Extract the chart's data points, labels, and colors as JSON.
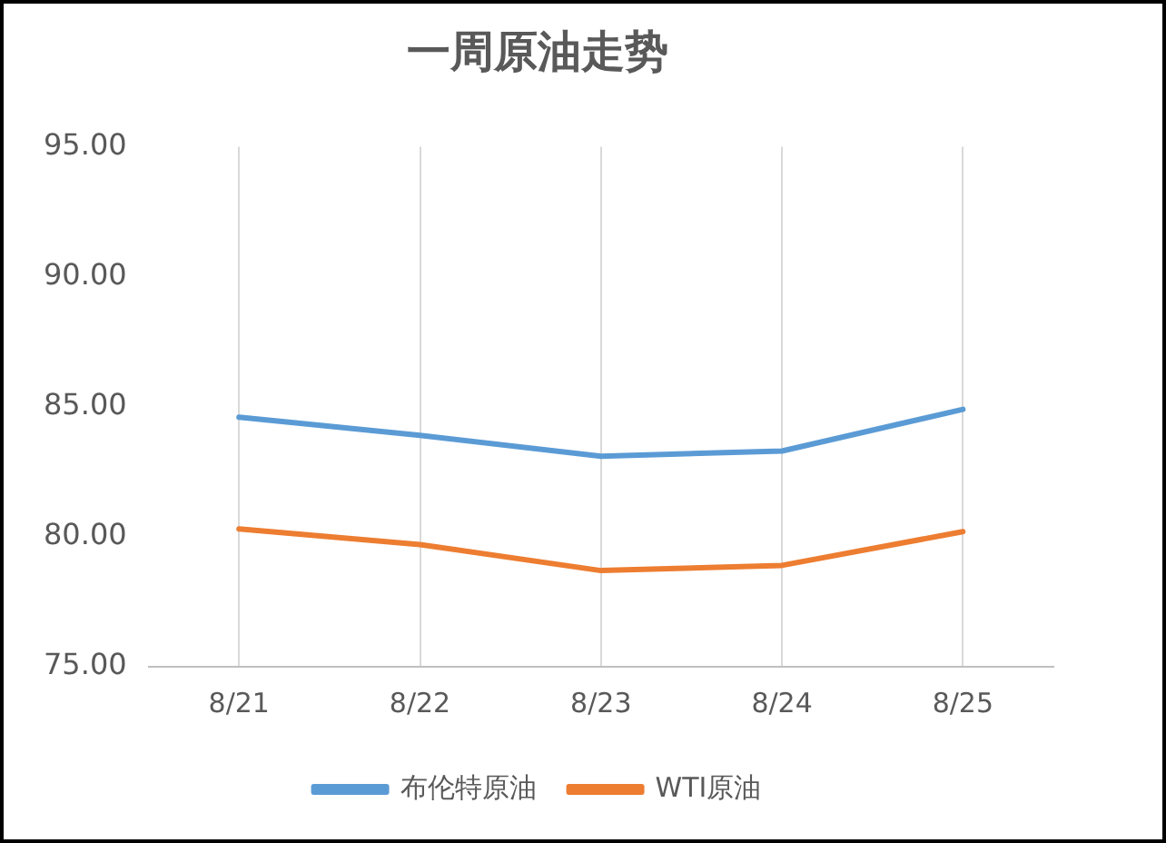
{
  "chart_data": {
    "type": "line",
    "title": "一周原油走势",
    "categories": [
      "8/21",
      "8/22",
      "8/23",
      "8/24",
      "8/25"
    ],
    "series": [
      {
        "name": "布伦特原油",
        "color": "#5b9bd5",
        "values": [
          84.6,
          83.9,
          83.1,
          83.3,
          84.9
        ]
      },
      {
        "name": "WTI原油",
        "color": "#ed7d31",
        "values": [
          80.3,
          79.7,
          78.7,
          78.9,
          80.2
        ]
      }
    ],
    "ylim": [
      75,
      95
    ],
    "yticks": [
      {
        "value": 75,
        "label": "75.00"
      },
      {
        "value": 80,
        "label": "80.00"
      },
      {
        "value": 85,
        "label": "85.00"
      },
      {
        "value": 90,
        "label": "90.00"
      },
      {
        "value": 95,
        "label": "95.00"
      }
    ],
    "grid": "x",
    "legend": "bottom",
    "marker": "none",
    "line_style": "solid"
  }
}
